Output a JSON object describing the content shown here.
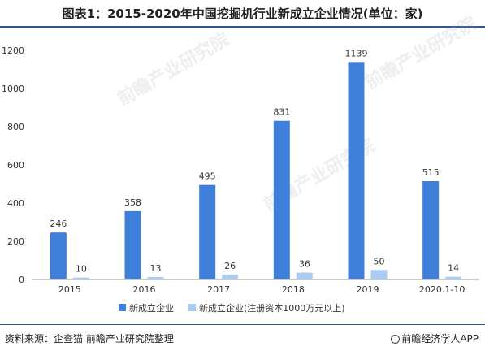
{
  "chart_data": {
    "type": "bar",
    "title": "图表1：2015-2020年中国挖掘机行业新成立企业情况(单位：家)",
    "categories": [
      "2015",
      "2016",
      "2017",
      "2018",
      "2019",
      "2020.1-10"
    ],
    "series": [
      {
        "name": "新成立企业",
        "color": "#3f7fd9",
        "values": [
          246,
          358,
          495,
          831,
          1139,
          515
        ]
      },
      {
        "name": "新成立企业(注册资本1000万元以上)",
        "color": "#a9cdf2",
        "values": [
          10,
          13,
          26,
          36,
          50,
          14
        ]
      }
    ],
    "ylim": [
      0,
      1200
    ],
    "yticks": [
      "0",
      "200",
      "400",
      "600",
      "800",
      "1000",
      "1200"
    ],
    "grid": false,
    "legend": "bottom"
  },
  "footer": {
    "source": "资料来源：企查猫 前瞻产业研究院整理",
    "brand": "前瞻经济学人APP"
  },
  "watermark": "前瞻产业研究院"
}
